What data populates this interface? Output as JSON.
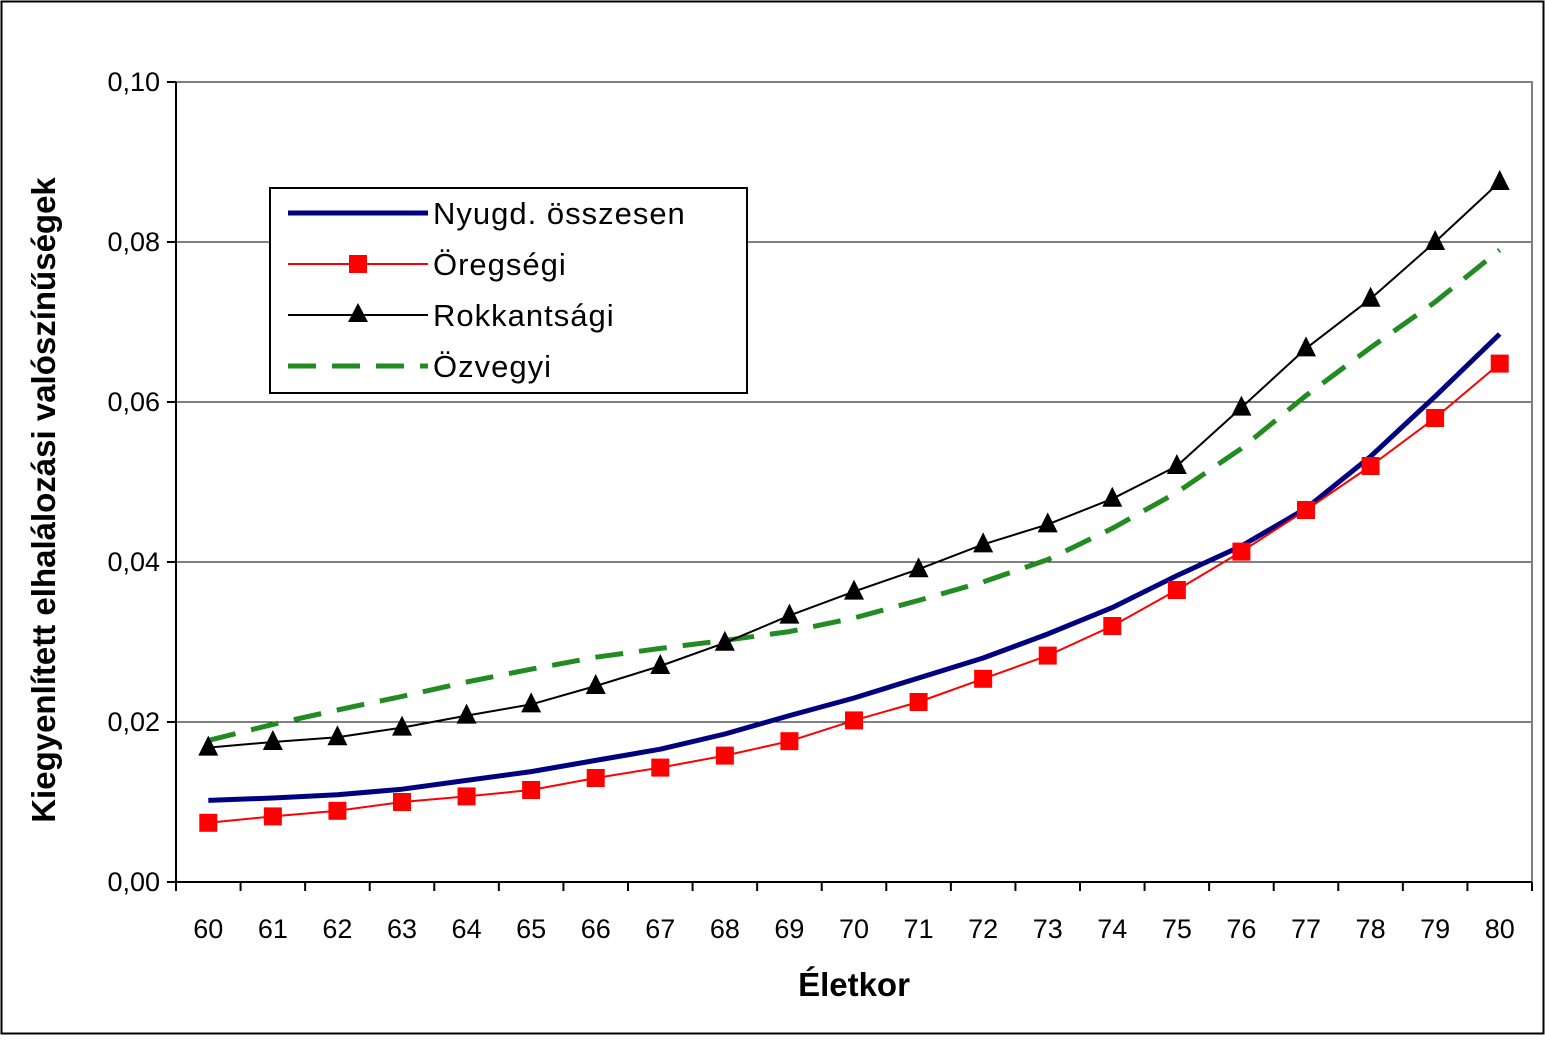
{
  "chart_data": {
    "type": "line",
    "xlabel": "Életkor",
    "ylabel": "Kiegyenlített elhalálozási valószínűségek",
    "x": [
      60,
      61,
      62,
      63,
      64,
      65,
      66,
      67,
      68,
      69,
      70,
      71,
      72,
      73,
      74,
      75,
      76,
      77,
      78,
      79,
      80
    ],
    "ylim": [
      0,
      0.1
    ],
    "yticks": [
      0,
      0.02,
      0.04,
      0.06,
      0.08,
      0.1
    ],
    "ytick_labels": [
      "0,00",
      "0,02",
      "0,04",
      "0,06",
      "0,08",
      "0,10"
    ],
    "grid": "horizontal",
    "legend_position": "upper-left",
    "series": [
      {
        "name": "Nyugd. összesen",
        "color": "#000080",
        "style": "solid-thick",
        "marker": "none",
        "values": [
          0.0102,
          0.0105,
          0.0109,
          0.0116,
          0.0127,
          0.0138,
          0.0152,
          0.0166,
          0.0185,
          0.0208,
          0.023,
          0.0255,
          0.028,
          0.031,
          0.0343,
          0.0383,
          0.042,
          0.0467,
          0.0532,
          0.0607,
          0.0685
        ]
      },
      {
        "name": "Öregségi",
        "color": "#ff0000",
        "style": "solid",
        "marker": "square",
        "values": [
          0.0074,
          0.0082,
          0.0089,
          0.01,
          0.0107,
          0.0115,
          0.013,
          0.0143,
          0.0158,
          0.0176,
          0.0202,
          0.0225,
          0.0254,
          0.0283,
          0.032,
          0.0365,
          0.0413,
          0.0465,
          0.052,
          0.058,
          0.0648
        ]
      },
      {
        "name": "Rokkantsági",
        "color": "#000000",
        "style": "solid",
        "marker": "triangle",
        "values": [
          0.0168,
          0.0175,
          0.0181,
          0.0193,
          0.0208,
          0.0222,
          0.0245,
          0.027,
          0.0299,
          0.0333,
          0.0363,
          0.0391,
          0.0422,
          0.0447,
          0.0479,
          0.052,
          0.0593,
          0.0667,
          0.0729,
          0.08,
          0.0875
        ]
      },
      {
        "name": "Özvegyi",
        "color": "#228b22",
        "style": "dashed",
        "marker": "none",
        "values": [
          0.0177,
          0.0197,
          0.0215,
          0.0232,
          0.025,
          0.0266,
          0.0281,
          0.0292,
          0.0302,
          0.0313,
          0.033,
          0.0352,
          0.0375,
          0.0403,
          0.0442,
          0.0487,
          0.0542,
          0.0608,
          0.0668,
          0.0725,
          0.079
        ]
      }
    ]
  }
}
